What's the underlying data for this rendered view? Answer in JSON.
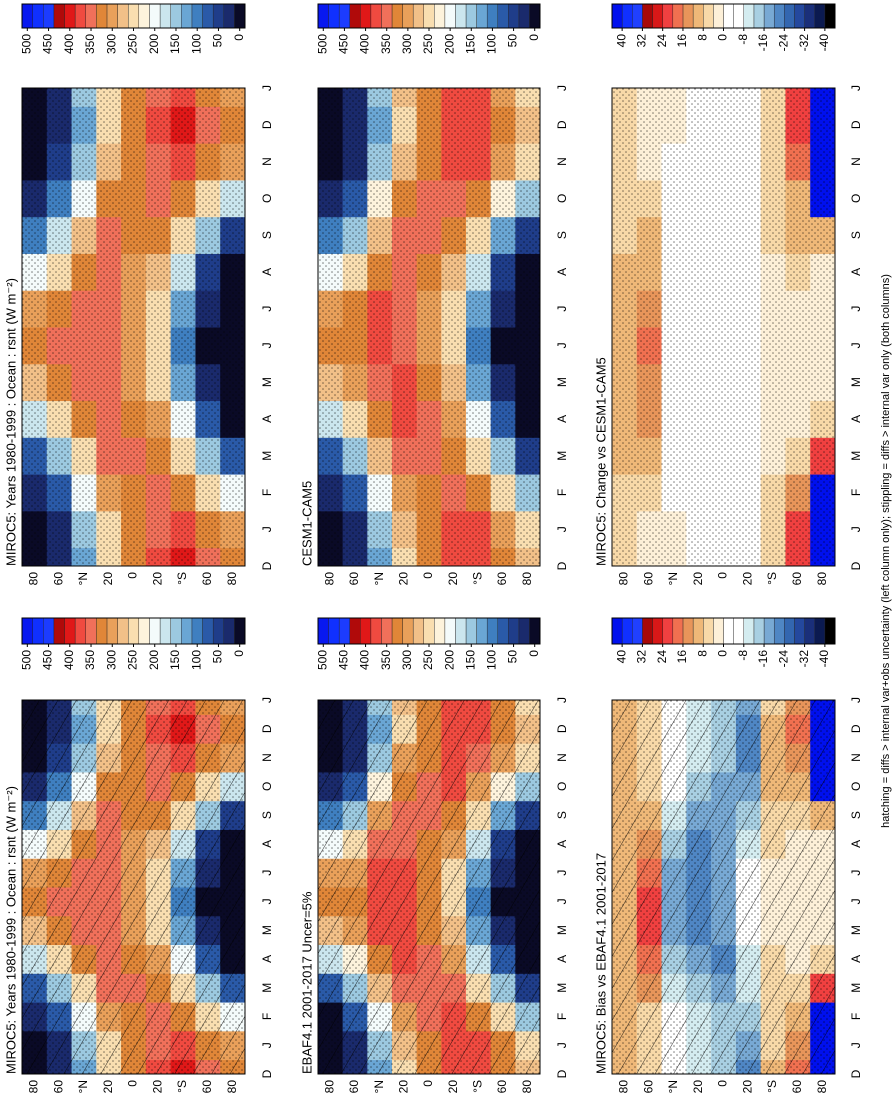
{
  "footnote": "hatching = diffs > internal var+obs uncertainty (left column only); stippling = diffs > internal var only (both columns)",
  "chart_data": [
    {
      "type": "heatmap",
      "title": "MIROC5: Years 1980-1999 : Ocean : rsnt (W m⁻²)",
      "hatching": false,
      "stippling": true,
      "categories": [
        "D",
        "J",
        "F",
        "M",
        "A",
        "M",
        "J",
        "J",
        "A",
        "S",
        "O",
        "N",
        "D",
        "J"
      ],
      "latitudes": [
        "80",
        "60",
        "°N",
        "20",
        "0",
        "20",
        "°S",
        "60",
        "80"
      ],
      "clim": [
        -12.5,
        512.5
      ],
      "cticks": [
        500,
        450,
        400,
        350,
        300,
        250,
        200,
        150,
        100,
        50,
        0
      ],
      "colors": [
        "#0a0a26",
        "#1a2a6c",
        "#1f3d8a",
        "#2a5aa8",
        "#3f7fc0",
        "#6aa6d4",
        "#9cc9e0",
        "#cbe6ee",
        "#f4fbfb",
        "#fdf3dc",
        "#f9deb0",
        "#f2c088",
        "#e9a05a",
        "#e08638",
        "#f0705a",
        "#f04a40",
        "#e01818",
        "#b00a0a",
        "#1c3cff",
        "#1030ff",
        "#0818f0"
      ],
      "z": [
        [
          0,
          0,
          20,
          80,
          180,
          280,
          330,
          300,
          200,
          110,
          30,
          0,
          0,
          0
        ],
        [
          20,
          30,
          70,
          150,
          250,
          320,
          350,
          330,
          260,
          170,
          90,
          40,
          20,
          30
        ],
        [
          120,
          140,
          190,
          260,
          320,
          350,
          360,
          360,
          330,
          280,
          210,
          150,
          120,
          140
        ],
        [
          250,
          260,
          300,
          340,
          360,
          360,
          350,
          340,
          340,
          340,
          320,
          280,
          250,
          260
        ],
        [
          315,
          320,
          330,
          340,
          330,
          310,
          300,
          300,
          310,
          330,
          330,
          320,
          315,
          320
        ],
        [
          365,
          360,
          350,
          330,
          300,
          260,
          240,
          250,
          280,
          320,
          350,
          360,
          365,
          360
        ],
        [
          390,
          380,
          330,
          260,
          190,
          130,
          100,
          120,
          170,
          250,
          320,
          370,
          390,
          380
        ],
        [
          350,
          330,
          250,
          160,
          80,
          30,
          10,
          20,
          60,
          140,
          240,
          320,
          350,
          330
        ],
        [
          330,
          300,
          190,
          70,
          10,
          0,
          0,
          0,
          5,
          50,
          180,
          290,
          330,
          300
        ]
      ]
    },
    {
      "type": "heatmap",
      "title": "CESM1-CAM5",
      "hatching": false,
      "stippling": true,
      "categories": [
        "D",
        "J",
        "F",
        "M",
        "A",
        "M",
        "J",
        "J",
        "A",
        "S",
        "O",
        "N",
        "D",
        "J"
      ],
      "latitudes": [
        "80",
        "60",
        "°N",
        "20",
        "0",
        "20",
        "°S",
        "60",
        "80"
      ],
      "clim": [
        -12.5,
        512.5
      ],
      "cticks": [
        500,
        450,
        400,
        350,
        300,
        250,
        200,
        150,
        100,
        50,
        0
      ],
      "colors": [
        "#0a0a26",
        "#1a2a6c",
        "#1f3d8a",
        "#2a5aa8",
        "#3f7fc0",
        "#6aa6d4",
        "#9cc9e0",
        "#cbe6ee",
        "#f4fbfb",
        "#fdf3dc",
        "#f9deb0",
        "#f2c088",
        "#e9a05a",
        "#e08638",
        "#f0705a",
        "#f04a40",
        "#e01818",
        "#b00a0a",
        "#1c3cff",
        "#1030ff",
        "#0818f0"
      ],
      "z": [
        [
          0,
          0,
          15,
          75,
          170,
          270,
          320,
          290,
          195,
          105,
          25,
          0,
          0,
          0
        ],
        [
          18,
          27,
          65,
          140,
          238,
          305,
          335,
          318,
          250,
          162,
          85,
          37,
          18,
          27
        ],
        [
          120,
          140,
          192,
          264,
          325,
          356,
          366,
          366,
          335,
          284,
          213,
          152,
          120,
          140
        ],
        [
          254,
          264,
          306,
          348,
          368,
          368,
          358,
          348,
          348,
          348,
          326,
          285,
          254,
          264
        ],
        [
          321,
          326,
          336,
          348,
          338,
          316,
          306,
          306,
          316,
          338,
          338,
          326,
          321,
          326
        ],
        [
          371,
          366,
          356,
          336,
          305,
          264,
          244,
          254,
          285,
          326,
          356,
          366,
          371,
          366
        ],
        [
          385,
          376,
          326,
          258,
          188,
          128,
          98,
          118,
          167,
          246,
          315,
          365,
          385,
          376
        ],
        [
          330,
          310,
          238,
          154,
          77,
          28,
          8,
          18,
          56,
          132,
          230,
          304,
          330,
          310
        ],
        [
          286,
          256,
          150,
          50,
          6,
          0,
          0,
          0,
          5,
          40,
          140,
          246,
          286,
          256
        ]
      ]
    },
    {
      "type": "heatmap",
      "title": "MIROC5: Change vs CESM1-CAM5",
      "hatching": false,
      "stippling": true,
      "categories": [
        "D",
        "J",
        "F",
        "M",
        "A",
        "M",
        "J",
        "J",
        "A",
        "S",
        "O",
        "N",
        "D",
        "J"
      ],
      "latitudes": [
        "80",
        "60",
        "°N",
        "20",
        "0",
        "20",
        "°S",
        "60",
        "80"
      ],
      "clim": [
        -44,
        44
      ],
      "cticks": [
        40,
        32,
        24,
        16,
        8,
        0,
        -8,
        -16,
        -24,
        -32,
        -40
      ],
      "colors": [
        "#000000",
        "#0b1a50",
        "#1a2f7a",
        "#24489e",
        "#3366b0",
        "#4f86c4",
        "#78a9d4",
        "#a8cfe2",
        "#d4ecf0",
        "#ffffff",
        "#ffffff",
        "#fdf0d8",
        "#f8d9a8",
        "#efb878",
        "#e8955a",
        "#f07050",
        "#f04040",
        "#d81818",
        "#a80808",
        "#2040ff",
        "#1030ff",
        "#0010ee"
      ],
      "z": [
        [
          5,
          5,
          5,
          8,
          8,
          8,
          8,
          8,
          8,
          5,
          5,
          5,
          5,
          5
        ],
        [
          3,
          3,
          5,
          10,
          12,
          15,
          16,
          14,
          10,
          8,
          5,
          3,
          3,
          3
        ],
        [
          0,
          0,
          -2,
          -4,
          -5,
          -6,
          -6,
          -6,
          -5,
          -4,
          -3,
          -2,
          0,
          0
        ],
        [
          -4,
          -4,
          -6,
          -8,
          -8,
          -8,
          -8,
          -8,
          -8,
          -8,
          -6,
          -5,
          -4,
          -4
        ],
        [
          -6,
          -6,
          -6,
          -8,
          -8,
          -6,
          -6,
          -6,
          -6,
          -8,
          -8,
          -6,
          -6,
          -6
        ],
        [
          -6,
          -6,
          -6,
          -6,
          -5,
          -4,
          -4,
          -4,
          -5,
          -6,
          -6,
          -6,
          -6,
          -6
        ],
        [
          5,
          4,
          4,
          2,
          2,
          2,
          2,
          2,
          3,
          4,
          5,
          5,
          5,
          4
        ],
        [
          20,
          20,
          12,
          6,
          3,
          2,
          2,
          2,
          4,
          8,
          10,
          16,
          20,
          20
        ],
        [
          44,
          44,
          40,
          20,
          4,
          0,
          0,
          0,
          0,
          10,
          40,
          44,
          44,
          44
        ]
      ]
    },
    {
      "type": "heatmap",
      "title": "MIROC5: Years 1980-1999 : Ocean : rsnt (W m⁻²)",
      "hatching": true,
      "stippling": true,
      "categories": [
        "D",
        "J",
        "F",
        "M",
        "A",
        "M",
        "J",
        "J",
        "A",
        "S",
        "O",
        "N",
        "D",
        "J"
      ],
      "latitudes": [
        "80",
        "60",
        "°N",
        "20",
        "0",
        "20",
        "°S",
        "60",
        "80"
      ],
      "clim": [
        -12.5,
        512.5
      ],
      "cticks": [
        500,
        450,
        400,
        350,
        300,
        250,
        200,
        150,
        100,
        50,
        0
      ],
      "colors": [
        "#0a0a26",
        "#1a2a6c",
        "#1f3d8a",
        "#2a5aa8",
        "#3f7fc0",
        "#6aa6d4",
        "#9cc9e0",
        "#cbe6ee",
        "#f4fbfb",
        "#fdf3dc",
        "#f9deb0",
        "#f2c088",
        "#e9a05a",
        "#e08638",
        "#f0705a",
        "#f04a40",
        "#e01818",
        "#b00a0a",
        "#1c3cff",
        "#1030ff",
        "#0818f0"
      ],
      "z": [
        [
          0,
          0,
          20,
          80,
          180,
          280,
          330,
          300,
          200,
          110,
          30,
          0,
          0,
          0
        ],
        [
          20,
          30,
          70,
          150,
          250,
          320,
          350,
          330,
          260,
          170,
          90,
          40,
          20,
          30
        ],
        [
          120,
          140,
          190,
          260,
          320,
          350,
          360,
          360,
          330,
          280,
          210,
          150,
          120,
          140
        ],
        [
          250,
          260,
          300,
          340,
          360,
          360,
          350,
          340,
          340,
          340,
          320,
          280,
          250,
          260
        ],
        [
          315,
          320,
          330,
          340,
          330,
          310,
          300,
          300,
          310,
          330,
          330,
          320,
          315,
          320
        ],
        [
          365,
          360,
          350,
          330,
          300,
          260,
          240,
          250,
          280,
          320,
          350,
          360,
          365,
          360
        ],
        [
          390,
          380,
          330,
          260,
          190,
          130,
          100,
          120,
          170,
          250,
          320,
          370,
          390,
          380
        ],
        [
          350,
          330,
          250,
          160,
          80,
          30,
          10,
          20,
          60,
          140,
          240,
          320,
          350,
          330
        ],
        [
          330,
          300,
          190,
          70,
          10,
          0,
          0,
          0,
          5,
          50,
          180,
          290,
          330,
          300
        ]
      ]
    },
    {
      "type": "heatmap",
      "title": "EBAF4.1 2001-2017 Uncer=5%",
      "hatching": true,
      "stippling": true,
      "categories": [
        "D",
        "J",
        "F",
        "M",
        "A",
        "M",
        "J",
        "J",
        "A",
        "S",
        "O",
        "N",
        "D",
        "J"
      ],
      "latitudes": [
        "80",
        "60",
        "°N",
        "20",
        "0",
        "20",
        "°S",
        "60",
        "80"
      ],
      "clim": [
        -12.5,
        512.5
      ],
      "cticks": [
        500,
        450,
        400,
        350,
        300,
        250,
        200,
        150,
        100,
        50,
        0
      ],
      "colors": [
        "#0a0a26",
        "#1a2a6c",
        "#1f3d8a",
        "#2a5aa8",
        "#3f7fc0",
        "#6aa6d4",
        "#9cc9e0",
        "#cbe6ee",
        "#f4fbfb",
        "#fdf3dc",
        "#f9deb0",
        "#f2c088",
        "#e9a05a",
        "#e08638",
        "#f0705a",
        "#f04a40",
        "#e01818",
        "#b00a0a",
        "#1c3cff",
        "#1030ff",
        "#0818f0"
      ],
      "z": [
        [
          0,
          0,
          12,
          70,
          170,
          272,
          322,
          292,
          192,
          102,
          22,
          0,
          0,
          0
        ],
        [
          16,
          26,
          64,
          138,
          232,
          298,
          328,
          312,
          248,
          162,
          85,
          36,
          16,
          26
        ],
        [
          124,
          144,
          198,
          272,
          336,
          368,
          380,
          378,
          344,
          290,
          218,
          156,
          124,
          144
        ],
        [
          260,
          270,
          312,
          356,
          380,
          382,
          374,
          364,
          362,
          358,
          336,
          292,
          260,
          270
        ],
        [
          329,
          334,
          346,
          360,
          352,
          330,
          318,
          318,
          328,
          350,
          350,
          336,
          329,
          334
        ],
        [
          387,
          380,
          366,
          342,
          310,
          268,
          248,
          258,
          290,
          334,
          368,
          382,
          387,
          380
        ],
        [
          382,
          374,
          324,
          256,
          186,
          128,
          98,
          118,
          166,
          244,
          312,
          362,
          382,
          374
        ],
        [
          334,
          318,
          242,
          156,
          78,
          28,
          8,
          18,
          58,
          136,
          232,
          306,
          334,
          318
        ],
        [
          286,
          256,
          150,
          50,
          6,
          0,
          0,
          0,
          5,
          40,
          140,
          246,
          286,
          256
        ]
      ]
    },
    {
      "type": "heatmap",
      "title": "MIROC5: Bias vs EBAF4.1 2001-2017",
      "hatching": true,
      "stippling": true,
      "categories": [
        "D",
        "J",
        "F",
        "M",
        "A",
        "M",
        "J",
        "J",
        "A",
        "S",
        "O",
        "N",
        "D",
        "J"
      ],
      "latitudes": [
        "80",
        "60",
        "°N",
        "20",
        "0",
        "20",
        "°S",
        "60",
        "80"
      ],
      "clim": [
        -44,
        44
      ],
      "cticks": [
        40,
        32,
        24,
        16,
        8,
        0,
        -8,
        -16,
        -24,
        -32,
        -40
      ],
      "colors": [
        "#000000",
        "#0b1a50",
        "#1a2f7a",
        "#24489e",
        "#3366b0",
        "#4f86c4",
        "#78a9d4",
        "#a8cfe2",
        "#d4ecf0",
        "#ffffff",
        "#ffffff",
        "#fdf0d8",
        "#f8d9a8",
        "#efb878",
        "#e8955a",
        "#f07050",
        "#f04040",
        "#d81818",
        "#a80808",
        "#2040ff",
        "#1030ff",
        "#0010ee"
      ],
      "z": [
        [
          8,
          8,
          8,
          10,
          10,
          8,
          8,
          8,
          8,
          8,
          8,
          8,
          8,
          8
        ],
        [
          4,
          4,
          6,
          12,
          18,
          22,
          22,
          18,
          12,
          8,
          5,
          4,
          4,
          4
        ],
        [
          -4,
          -4,
          -8,
          -12,
          -16,
          -18,
          -20,
          -18,
          -14,
          -10,
          -8,
          -6,
          -4,
          -4
        ],
        [
          -10,
          -10,
          -12,
          -16,
          -20,
          -22,
          -24,
          -24,
          -22,
          -18,
          -16,
          -12,
          -10,
          -10
        ],
        [
          -14,
          -14,
          -16,
          -20,
          -22,
          -20,
          -18,
          -18,
          -18,
          -20,
          -20,
          -16,
          -14,
          -14
        ],
        [
          -22,
          -20,
          -16,
          -12,
          -10,
          -8,
          -8,
          -8,
          -10,
          -14,
          -18,
          -22,
          -22,
          -20
        ],
        [
          8,
          6,
          6,
          4,
          4,
          2,
          2,
          2,
          4,
          6,
          8,
          8,
          8,
          6
        ],
        [
          16,
          12,
          8,
          4,
          2,
          2,
          2,
          2,
          2,
          4,
          8,
          14,
          16,
          12
        ],
        [
          44,
          44,
          40,
          20,
          4,
          0,
          0,
          0,
          0,
          10,
          40,
          44,
          44,
          44
        ]
      ]
    }
  ]
}
